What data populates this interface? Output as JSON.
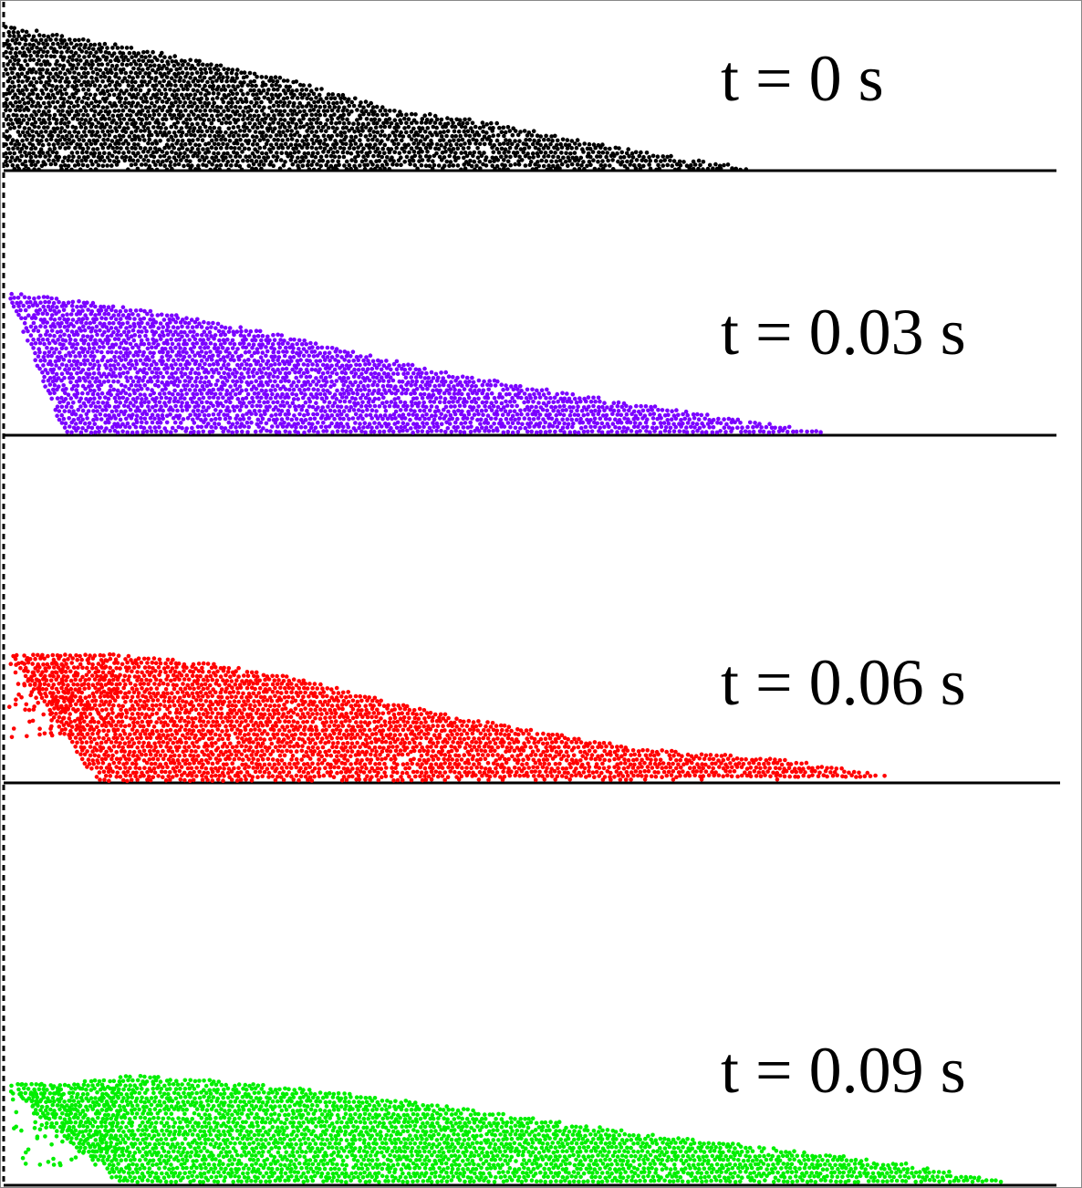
{
  "figure": {
    "frames": [
      {
        "id": "frame-t0",
        "label": "t = 0 s",
        "time_s": 0.0,
        "color": "#000000"
      },
      {
        "id": "frame-t003",
        "label": "t = 0.03 s",
        "time_s": 0.03,
        "color": "#7a00ff"
      },
      {
        "id": "frame-t006",
        "label": "t = 0.06 s",
        "time_s": 0.06,
        "color": "#ff0000"
      },
      {
        "id": "frame-t009",
        "label": "t = 0.09 s",
        "time_s": 0.09,
        "color": "#00ee00"
      }
    ]
  }
}
